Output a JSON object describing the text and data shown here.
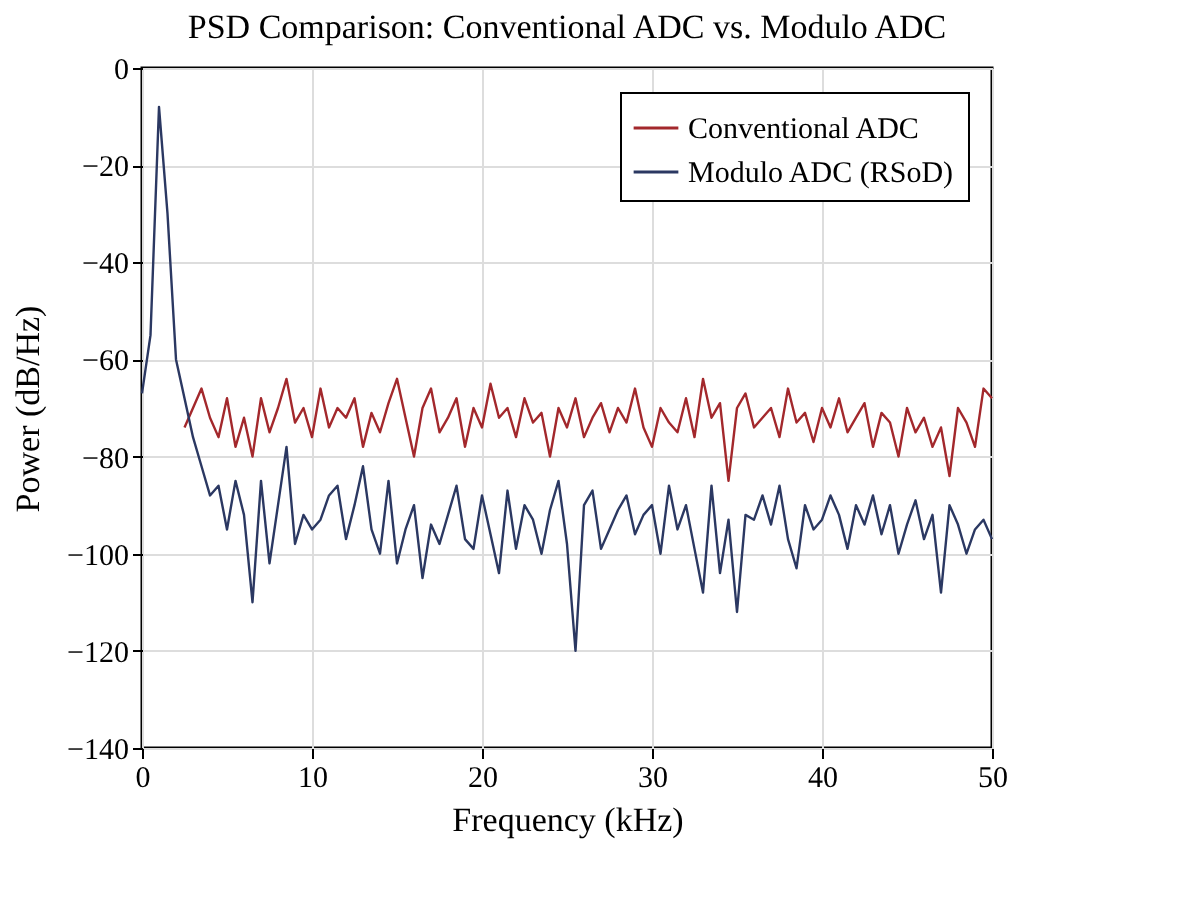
{
  "chart_data": {
    "type": "line",
    "title": "PSD Comparison: Conventional ADC vs. Modulo ADC",
    "xlabel": "Frequency (kHz)",
    "ylabel": "Power (dB/Hz)",
    "x": [
      0,
      0.5,
      1,
      1.5,
      2,
      2.5,
      3,
      3.5,
      4,
      4.5,
      5,
      5.5,
      6,
      6.5,
      7,
      7.5,
      8,
      8.5,
      9,
      9.5,
      10,
      10.5,
      11,
      11.5,
      12,
      12.5,
      13,
      13.5,
      14,
      14.5,
      15,
      15.5,
      16,
      16.5,
      17,
      17.5,
      18,
      18.5,
      19,
      19.5,
      20,
      20.5,
      21,
      21.5,
      22,
      22.5,
      23,
      23.5,
      24,
      24.5,
      25,
      25.5,
      26,
      26.5,
      27,
      27.5,
      28,
      28.5,
      29,
      29.5,
      30,
      30.5,
      31,
      31.5,
      32,
      32.5,
      33,
      33.5,
      34,
      34.5,
      35,
      35.5,
      36,
      36.5,
      37,
      37.5,
      38,
      38.5,
      39,
      39.5,
      40,
      40.5,
      41,
      41.5,
      42,
      42.5,
      43,
      43.5,
      44,
      44.5,
      45,
      45.5,
      46,
      46.5,
      47,
      47.5,
      48,
      48.5,
      49,
      49.5,
      50
    ],
    "series": [
      {
        "name": "Conventional ADC",
        "color": "#a3282c",
        "values": [
          null,
          null,
          null,
          null,
          null,
          -74,
          -70,
          -66,
          -72,
          -76,
          -68,
          -78,
          -72,
          -80,
          -68,
          -75,
          -70,
          -64,
          -73,
          -70,
          -76,
          -66,
          -74,
          -70,
          -72,
          -68,
          -78,
          -71,
          -75,
          -69,
          -64,
          -72,
          -80,
          -70,
          -66,
          -75,
          -72,
          -68,
          -78,
          -70,
          -74,
          -65,
          -72,
          -70,
          -76,
          -68,
          -73,
          -71,
          -80,
          -70,
          -74,
          -68,
          -76,
          -72,
          -69,
          -75,
          -70,
          -73,
          -66,
          -74,
          -78,
          -70,
          -73,
          -75,
          -68,
          -76,
          -64,
          -72,
          -69,
          -85,
          -70,
          -67,
          -74,
          -72,
          -70,
          -76,
          -66,
          -73,
          -71,
          -77,
          -70,
          -74,
          -68,
          -75,
          -72,
          -69,
          -78,
          -71,
          -73,
          -80,
          -70,
          -75,
          -72,
          -78,
          -74,
          -84,
          -70,
          -73,
          -78,
          -66,
          -68
        ]
      },
      {
        "name": "Modulo ADC (RSoD)",
        "color": "#2b3862",
        "values": [
          -67,
          -55,
          -8,
          -30,
          -60,
          -68,
          -76,
          -82,
          -88,
          -86,
          -95,
          -85,
          -92,
          -110,
          -85,
          -102,
          -90,
          -78,
          -98,
          -92,
          -95,
          -93,
          -88,
          -86,
          -97,
          -90,
          -82,
          -95,
          -100,
          -85,
          -102,
          -95,
          -90,
          -105,
          -94,
          -98,
          -92,
          -86,
          -97,
          -99,
          -88,
          -96,
          -104,
          -87,
          -99,
          -90,
          -93,
          -100,
          -91,
          -85,
          -98,
          -120,
          -90,
          -87,
          -99,
          -95,
          -91,
          -88,
          -96,
          -92,
          -90,
          -100,
          -86,
          -95,
          -90,
          -99,
          -108,
          -86,
          -104,
          -93,
          -112,
          -92,
          -93,
          -88,
          -94,
          -86,
          -97,
          -103,
          -90,
          -95,
          -93,
          -88,
          -92,
          -99,
          -90,
          -94,
          -88,
          -96,
          -90,
          -100,
          -94,
          -89,
          -97,
          -92,
          -108,
          -90,
          -94,
          -100,
          -95,
          -93,
          -97
        ]
      }
    ],
    "xlim": [
      0,
      50
    ],
    "xticks": [
      0,
      10,
      20,
      30,
      40,
      50
    ],
    "ylim": [
      -140,
      0
    ],
    "yticks": [
      -140,
      -120,
      -100,
      -80,
      -60,
      -40,
      -20,
      0
    ],
    "grid": true,
    "legend": "top right",
    "line_style": "solid"
  }
}
